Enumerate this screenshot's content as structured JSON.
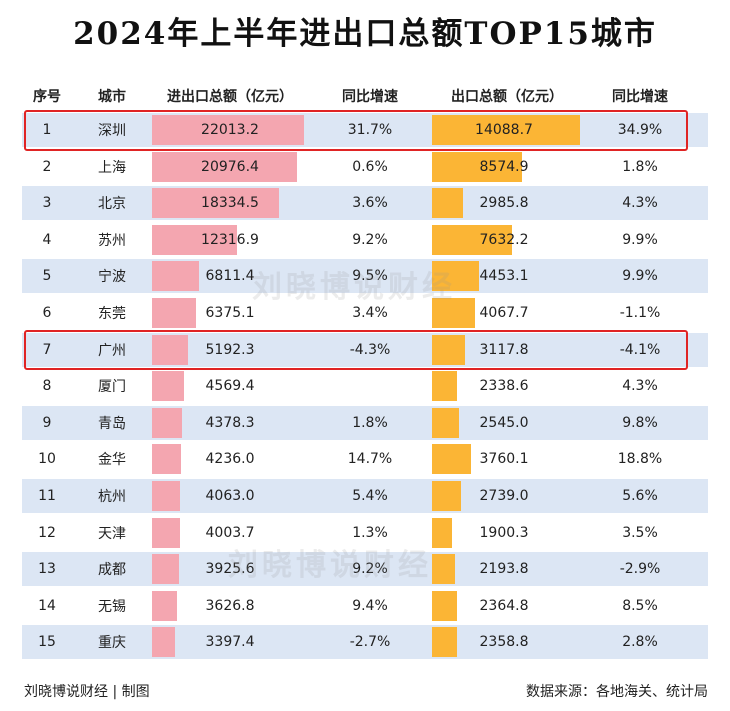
{
  "title": "2024年上半年进出口总额TOP15城市",
  "columns": {
    "rank": "序号",
    "city": "城市",
    "total": "进出口总额（亿元）",
    "total_yoy": "同比增速",
    "export": "出口总额（亿元）",
    "export_yoy": "同比增速"
  },
  "watermark": "刘晓博说财经",
  "footer": {
    "credit": "刘晓博说财经 | 制图",
    "source": "数据来源：各地海关、统计局"
  },
  "colors": {
    "import_bar": "#f4a6b0",
    "export_bar": "#fbb535",
    "row_shade": "#dce6f4",
    "highlight": "#e02424"
  },
  "highlighted_ranks": [
    "1",
    "7"
  ],
  "chart_data": {
    "type": "table",
    "title": "2024年上半年进出口总额TOP15城市",
    "rows": [
      {
        "rank": "1",
        "city": "深圳",
        "total": "22013.2",
        "total_yoy": "31.7%",
        "export": "14088.7",
        "export_yoy": "34.9%"
      },
      {
        "rank": "2",
        "city": "上海",
        "total": "20976.4",
        "total_yoy": "0.6%",
        "export": "8574.9",
        "export_yoy": "1.8%"
      },
      {
        "rank": "3",
        "city": "北京",
        "total": "18334.5",
        "total_yoy": "3.6%",
        "export": "2985.8",
        "export_yoy": "4.3%"
      },
      {
        "rank": "4",
        "city": "苏州",
        "total": "12316.9",
        "total_yoy": "9.2%",
        "export": "7632.2",
        "export_yoy": "9.9%"
      },
      {
        "rank": "5",
        "city": "宁波",
        "total": "6811.4",
        "total_yoy": "9.5%",
        "export": "4453.1",
        "export_yoy": "9.9%"
      },
      {
        "rank": "6",
        "city": "东莞",
        "total": "6375.1",
        "total_yoy": "3.4%",
        "export": "4067.7",
        "export_yoy": "-1.1%"
      },
      {
        "rank": "7",
        "city": "广州",
        "total": "5192.3",
        "total_yoy": "-4.3%",
        "export": "3117.8",
        "export_yoy": "-4.1%"
      },
      {
        "rank": "8",
        "city": "厦门",
        "total": "4569.4",
        "total_yoy": "",
        "export": "2338.6",
        "export_yoy": "4.3%"
      },
      {
        "rank": "9",
        "city": "青岛",
        "total": "4378.3",
        "total_yoy": "1.8%",
        "export": "2545.0",
        "export_yoy": "9.8%"
      },
      {
        "rank": "10",
        "city": "金华",
        "total": "4236.0",
        "total_yoy": "14.7%",
        "export": "3760.1",
        "export_yoy": "18.8%"
      },
      {
        "rank": "11",
        "city": "杭州",
        "total": "4063.0",
        "total_yoy": "5.4%",
        "export": "2739.0",
        "export_yoy": "5.6%"
      },
      {
        "rank": "12",
        "city": "天津",
        "total": "4003.7",
        "total_yoy": "1.3%",
        "export": "1900.3",
        "export_yoy": "3.5%"
      },
      {
        "rank": "13",
        "city": "成都",
        "total": "3925.6",
        "total_yoy": "9.2%",
        "export": "2193.8",
        "export_yoy": "-2.9%"
      },
      {
        "rank": "14",
        "city": "无锡",
        "total": "3626.8",
        "total_yoy": "9.4%",
        "export": "2364.8",
        "export_yoy": "8.5%"
      },
      {
        "rank": "15",
        "city": "重庆",
        "total": "3397.4",
        "total_yoy": "-2.7%",
        "export": "2358.8",
        "export_yoy": "2.8%"
      }
    ]
  }
}
